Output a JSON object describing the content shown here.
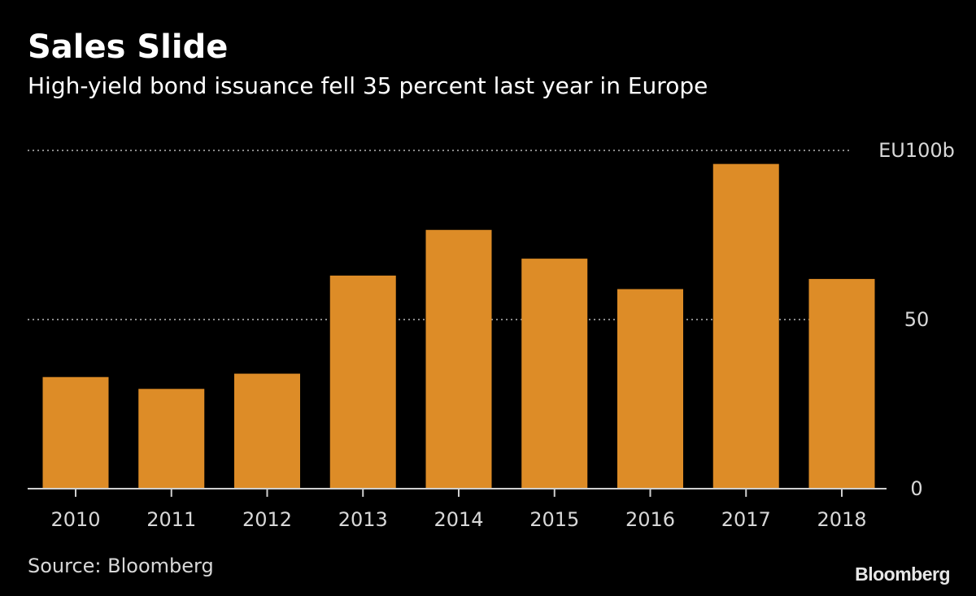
{
  "chart_data": {
    "type": "bar",
    "title": "Sales Slide",
    "subtitle": "High-yield bond issuance fell 35 percent last year in Europe",
    "categories": [
      "2010",
      "2011",
      "2012",
      "2013",
      "2014",
      "2015",
      "2016",
      "2017",
      "2018"
    ],
    "values": [
      33,
      29.5,
      34,
      63,
      76.5,
      68,
      59,
      96,
      62
    ],
    "ylim": [
      0,
      100
    ],
    "yticks": [
      {
        "value": 0,
        "label": "0"
      },
      {
        "value": 50,
        "label": "50"
      },
      {
        "value": 100,
        "label": "EU100b"
      }
    ],
    "grid": true,
    "xlabel": "",
    "ylabel": "",
    "colors": {
      "bar": "#dd8c27",
      "background": "#000000",
      "grid": "#8a8a8a",
      "axis": "#cfcfcf",
      "text": "#ffffff"
    }
  },
  "source": "Source: Bloomberg",
  "brand": "Bloomberg"
}
